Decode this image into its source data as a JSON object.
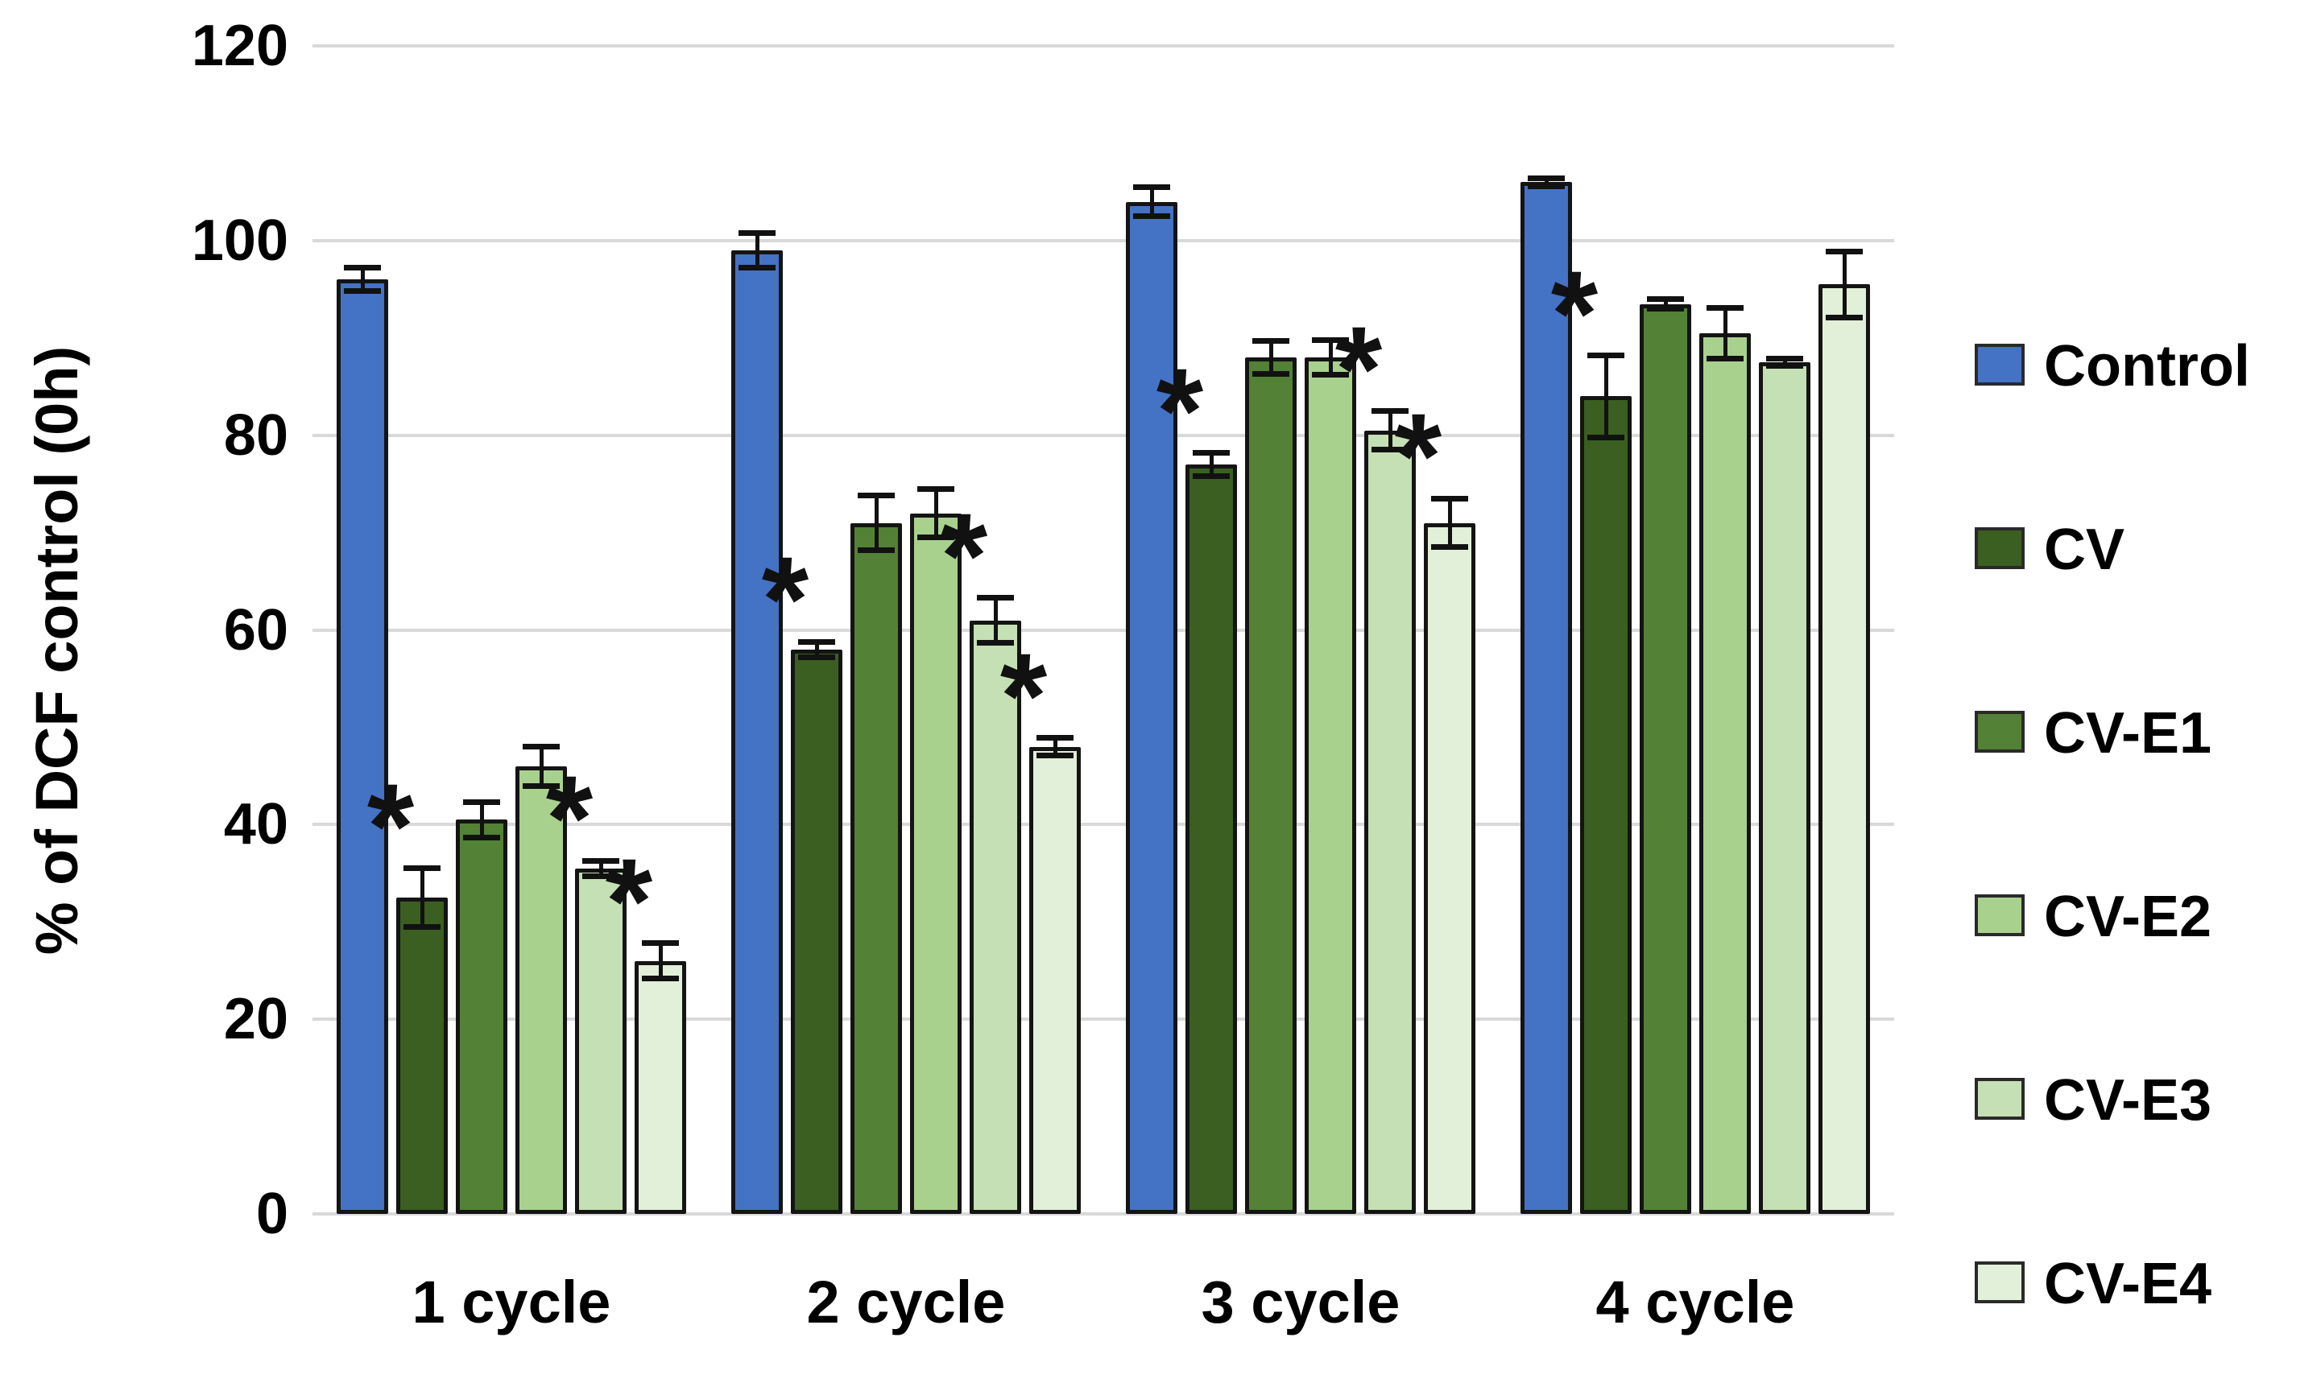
{
  "chart_data": {
    "type": "bar",
    "title": "",
    "xlabel": "",
    "ylabel": "% of DCF control (0h)",
    "categories": [
      "1 cycle",
      "2 cycle",
      "3 cycle",
      "4 cycle"
    ],
    "series": [
      {
        "name": "Control",
        "color": "#4472C4",
        "values": [
          96,
          99,
          104,
          106
        ],
        "errors": [
          1.2,
          1.8,
          1.5,
          0.4
        ],
        "significant": [
          false,
          false,
          false,
          false
        ]
      },
      {
        "name": "CV",
        "color": "#3A5F21",
        "values": [
          32.5,
          58,
          77,
          84
        ],
        "errors": [
          3.0,
          0.8,
          1.2,
          4.2
        ],
        "significant": [
          true,
          true,
          true,
          true
        ]
      },
      {
        "name": "CV-E1",
        "color": "#538135",
        "values": [
          40.5,
          71,
          88,
          93.5
        ],
        "errors": [
          1.8,
          2.8,
          1.7,
          0.5
        ],
        "significant": [
          false,
          false,
          false,
          false
        ]
      },
      {
        "name": "CV-E2",
        "color": "#A9D18E",
        "values": [
          46,
          72,
          88,
          90.5
        ],
        "errors": [
          2.0,
          2.5,
          1.8,
          2.6
        ],
        "significant": [
          false,
          false,
          false,
          false
        ]
      },
      {
        "name": "CV-E3",
        "color": "#C5E0B4",
        "values": [
          35.5,
          61,
          80.5,
          87.5
        ],
        "errors": [
          0.8,
          2.3,
          2.0,
          0.4
        ],
        "significant": [
          true,
          true,
          true,
          false
        ]
      },
      {
        "name": "CV-E4",
        "color": "#E2EFD9",
        "values": [
          26,
          48,
          71,
          95.5
        ],
        "errors": [
          1.8,
          0.9,
          2.5,
          3.4
        ],
        "significant": [
          true,
          true,
          true,
          false
        ]
      }
    ],
    "ylim": [
      0,
      120
    ],
    "yticks": [
      0,
      20,
      40,
      60,
      80,
      100,
      120
    ],
    "grid": true,
    "gridline_color": "#d9d9d9",
    "bar_border_color": "#141414",
    "legend_position": "right",
    "significance_marker": "*"
  },
  "legend": {
    "items": [
      "Control",
      "CV",
      "CV-E1",
      "CV-E2",
      "CV-E3",
      "CV-E4"
    ]
  },
  "axes": {
    "y_title": "% of DCF control (0h)",
    "y_tick_labels": [
      "0",
      "20",
      "40",
      "60",
      "80",
      "100",
      "120"
    ],
    "x_tick_labels": [
      "1 cycle",
      "2 cycle",
      "3 cycle",
      "4 cycle"
    ]
  }
}
